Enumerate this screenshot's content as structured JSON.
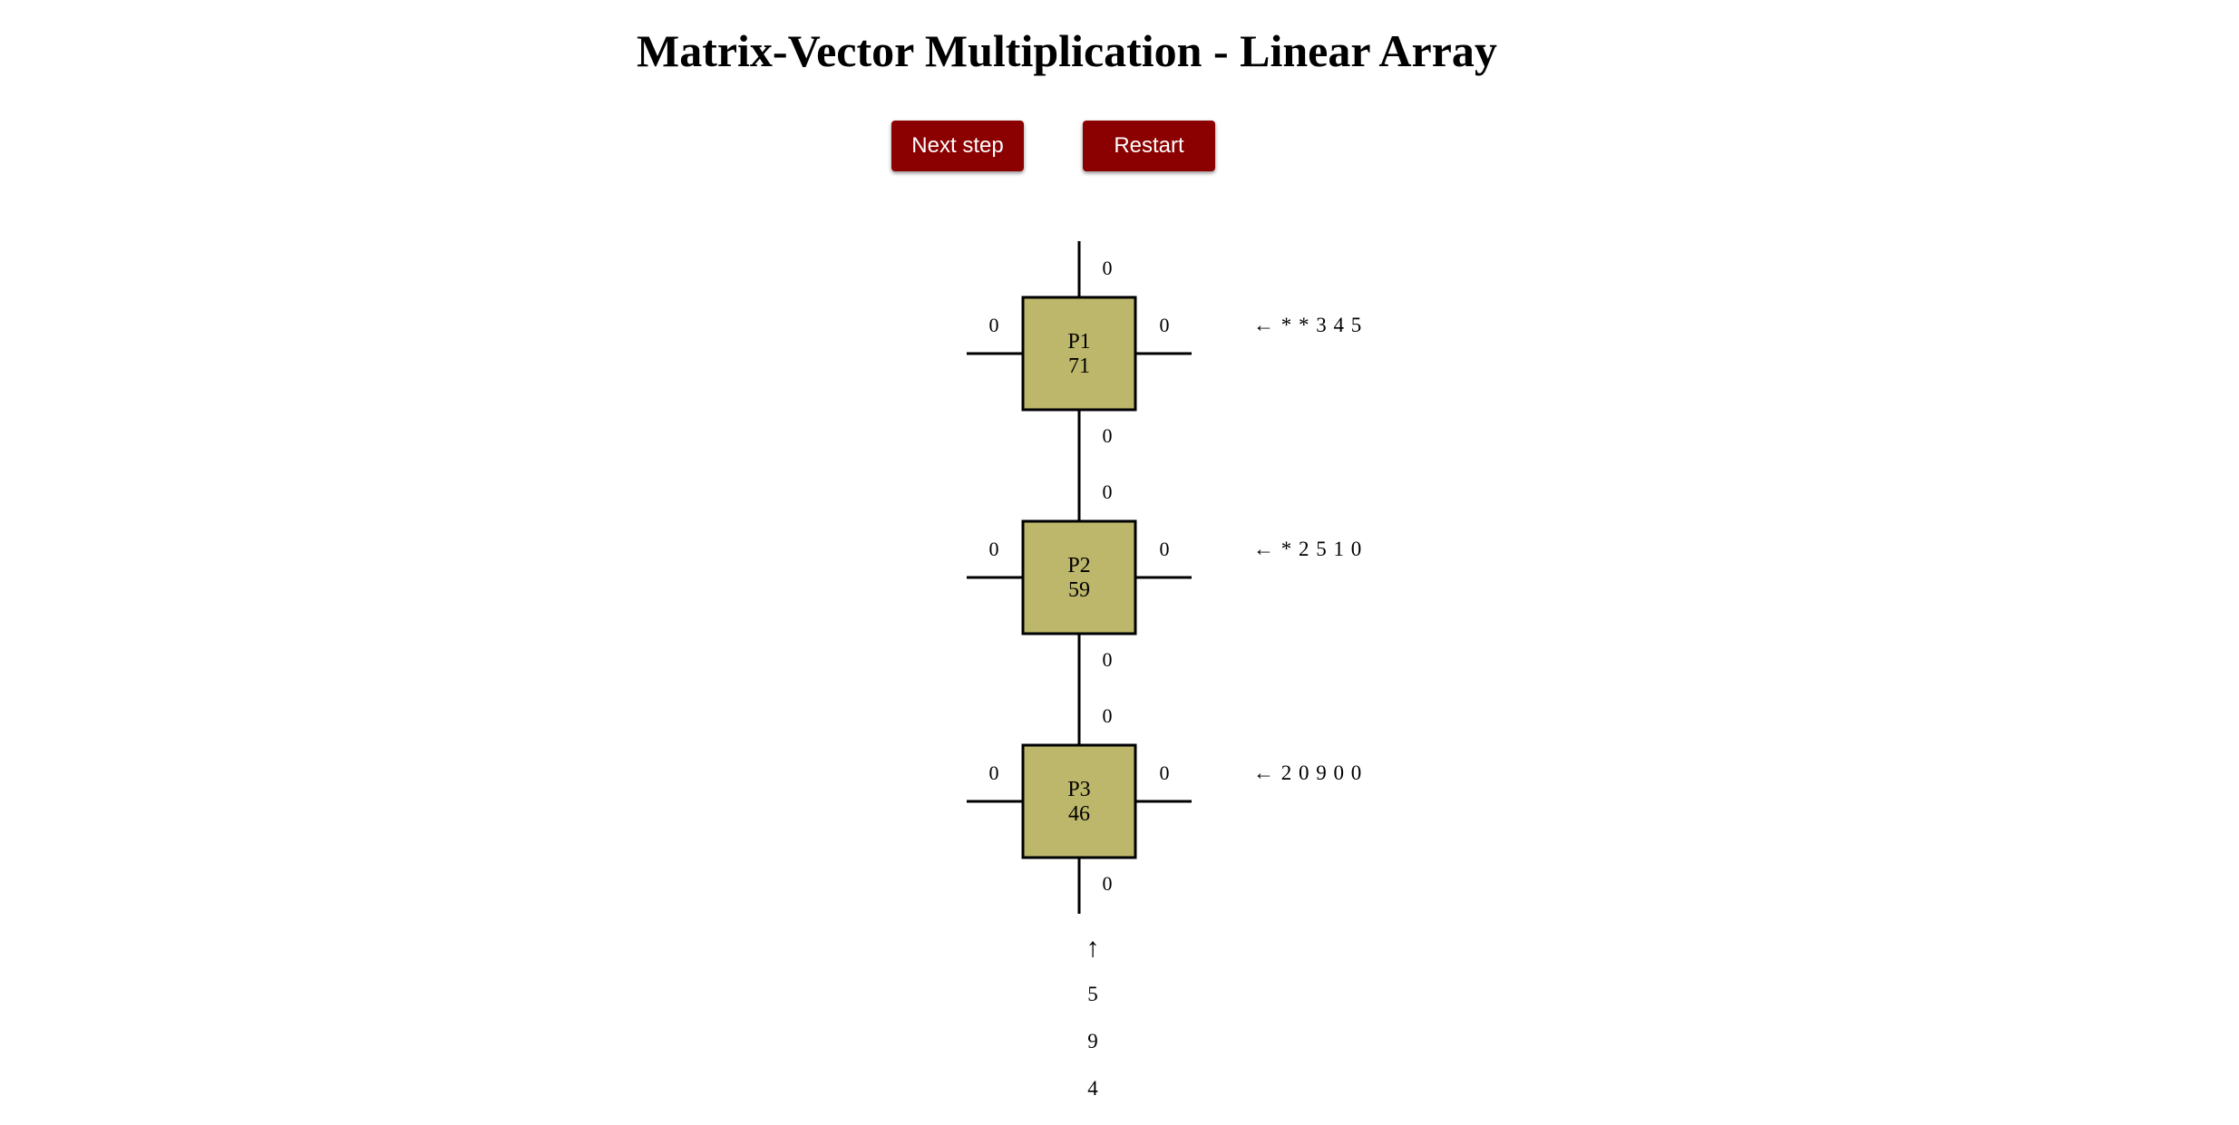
{
  "title": "Matrix-Vector Multiplication - Linear Array",
  "controls": {
    "next_label": "Next step",
    "restart_label": "Restart"
  },
  "colors": {
    "button_bg": "#8b0000",
    "processor_fill": "#bdb76b",
    "line": "#000000"
  },
  "processors": [
    {
      "name": "P1",
      "value": "71",
      "top_in": "0",
      "left_out": "0",
      "right_in": "0",
      "bottom_out": "0",
      "row_stream": "← * * 3 4 5"
    },
    {
      "name": "P2",
      "value": "59",
      "top_in": "0",
      "left_out": "0",
      "right_in": "0",
      "bottom_out": "0",
      "row_stream": "← * 2 5 1 0"
    },
    {
      "name": "P3",
      "value": "46",
      "top_in": "0",
      "left_out": "0",
      "right_in": "0",
      "bottom_out": "0",
      "row_stream": "← 2 0 9 0 0"
    }
  ],
  "vector_input": {
    "arrow": "↑",
    "values": [
      "5",
      "9",
      "4"
    ]
  }
}
